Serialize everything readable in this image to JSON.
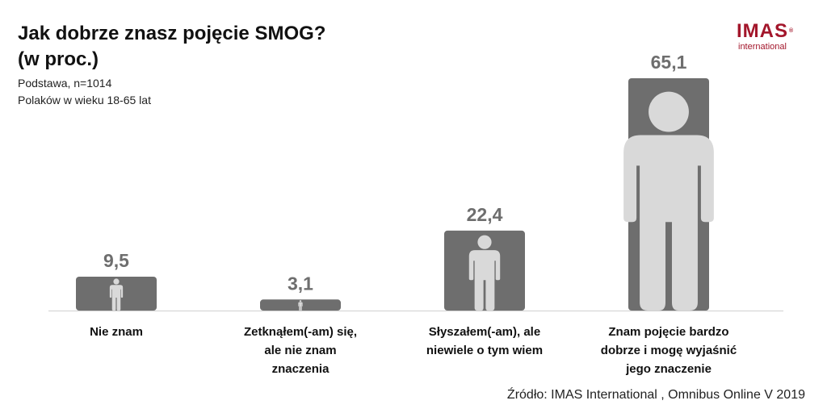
{
  "header": {
    "title_line1": "Jak dobrze znasz pojęcie SMOG?",
    "title_line2": "(w proc.)",
    "subtitle_line1": "Podstawa, n=1014",
    "subtitle_line2": "Polaków w wieku 18-65 lat"
  },
  "logo": {
    "main": "IMAS",
    "registered": "®",
    "sub": "international"
  },
  "source": "Źródło: IMAS International , Omnibus Online V 2019",
  "colors": {
    "bar": "#6e6e6e",
    "figure": "#d9d9d9",
    "value_label": "#6e6e6e",
    "brand": "#a3162b"
  },
  "chart_data": {
    "type": "bar",
    "categories": [
      [
        "Nie znam"
      ],
      [
        "Zetknąłem(-am) się,",
        "ale nie znam",
        "znaczenia"
      ],
      [
        "Słyszałem(-am), ale",
        "niewiele o tym wiem"
      ],
      [
        "Znam pojęcie bardzo",
        "dobrze i mogę wyjaśnić",
        "jego znaczenie"
      ]
    ],
    "values": [
      9.5,
      3.1,
      22.4,
      65.1
    ],
    "value_labels": [
      "9,5",
      "3,1",
      "22,4",
      "65,1"
    ],
    "ylim": [
      0,
      65.1
    ],
    "grid": false,
    "legend": "none"
  }
}
